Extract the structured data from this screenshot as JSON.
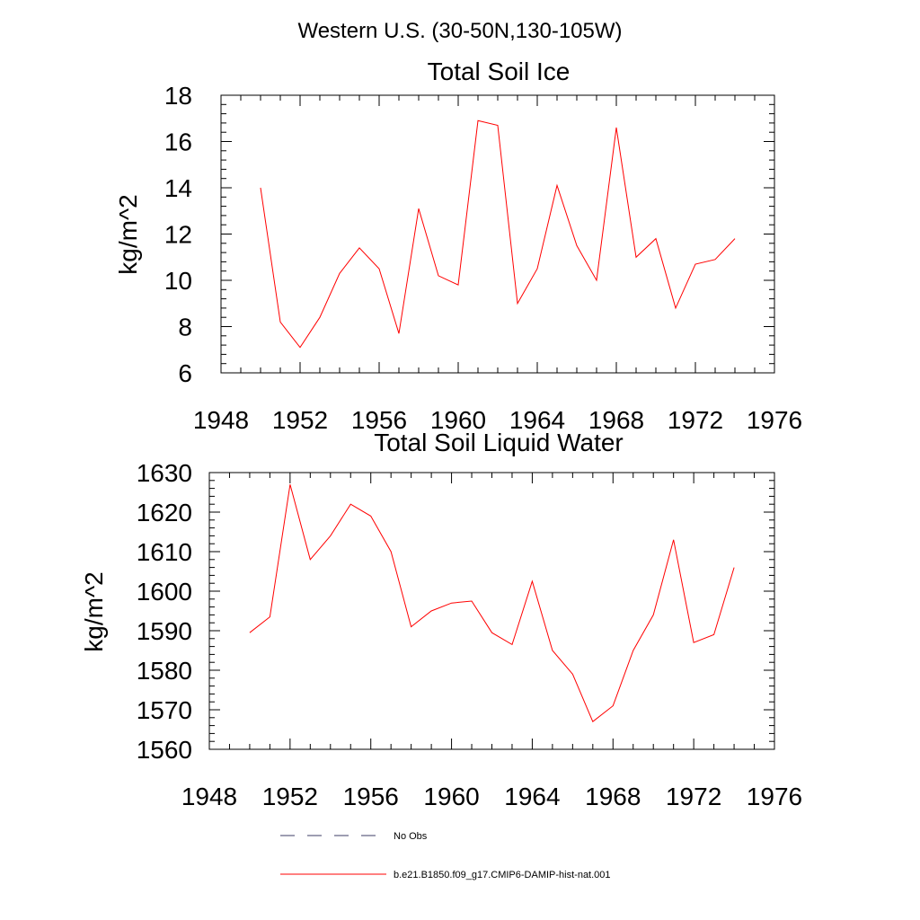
{
  "suptitle": "Western U.S. (30-50N,130-105W)",
  "colors": {
    "model": "#ff0000",
    "obs": "#3c3c64",
    "axis": "#000000"
  },
  "legend": [
    {
      "label": "No Obs",
      "style": "dashed",
      "color": "#3c3c64"
    },
    {
      "label": "b.e21.B1850.f09_g17.CMIP6-DAMIP-hist-nat.001",
      "style": "solid",
      "color": "#ff0000"
    }
  ],
  "chart_data": [
    {
      "type": "line",
      "title": "Total Soil Ice",
      "xlabel": "",
      "ylabel": "kg/m^2",
      "xlim": [
        1948,
        1976
      ],
      "ylim": [
        6,
        18
      ],
      "xticks": [
        1948,
        1952,
        1956,
        1960,
        1964,
        1968,
        1972,
        1976
      ],
      "yticks": [
        6,
        8,
        10,
        12,
        14,
        16,
        18
      ],
      "x": [
        1950,
        1951,
        1952,
        1953,
        1954,
        1955,
        1956,
        1957,
        1958,
        1959,
        1960,
        1961,
        1962,
        1963,
        1964,
        1965,
        1966,
        1967,
        1968,
        1969,
        1970,
        1971,
        1972,
        1973,
        1974
      ],
      "series": [
        {
          "values": [
            14.0,
            8.2,
            7.1,
            8.4,
            10.3,
            11.4,
            10.5,
            7.7,
            13.1,
            10.2,
            9.8,
            16.9,
            16.7,
            9.0,
            10.5,
            14.1,
            11.5,
            10.0,
            16.6,
            11.0,
            11.8,
            8.8,
            10.7,
            10.9,
            11.8
          ]
        }
      ]
    },
    {
      "type": "line",
      "title": "Total Soil Liquid Water",
      "xlabel": "",
      "ylabel": "kg/m^2",
      "xlim": [
        1948,
        1976
      ],
      "ylim": [
        1560,
        1630
      ],
      "xticks": [
        1948,
        1952,
        1956,
        1960,
        1964,
        1968,
        1972,
        1976
      ],
      "yticks": [
        1560,
        1570,
        1580,
        1590,
        1600,
        1610,
        1620,
        1630
      ],
      "x": [
        1950,
        1951,
        1952,
        1953,
        1954,
        1955,
        1956,
        1957,
        1958,
        1959,
        1960,
        1961,
        1962,
        1963,
        1964,
        1965,
        1966,
        1967,
        1968,
        1969,
        1970,
        1971,
        1972,
        1973,
        1974
      ],
      "series": [
        {
          "values": [
            1589.5,
            1593.5,
            1627.0,
            1608.0,
            1614.0,
            1622.0,
            1619.0,
            1610.0,
            1591.0,
            1595.0,
            1597.0,
            1597.5,
            1589.5,
            1586.5,
            1602.5,
            1585.0,
            1579.0,
            1567.0,
            1571.0,
            1585.0,
            1594.0,
            1613.0,
            1587.0,
            1589.0,
            1606.0
          ]
        }
      ]
    }
  ]
}
